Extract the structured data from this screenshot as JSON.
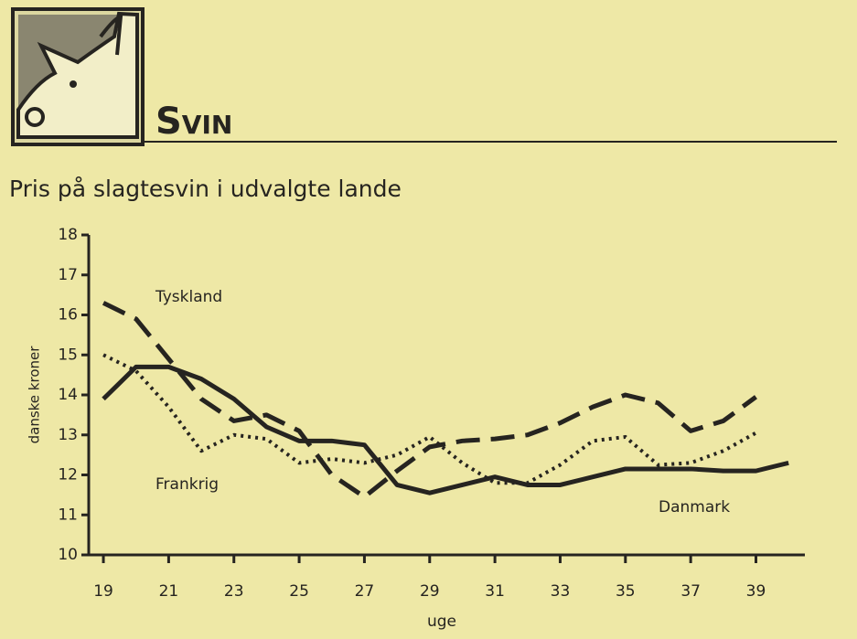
{
  "header": {
    "title": "Svin"
  },
  "chart_data": {
    "type": "line",
    "title": "Pris på slagtesvin i udvalgte lande",
    "x_label": "uge",
    "y_label": "danske kroner",
    "x": [
      19,
      20,
      21,
      22,
      23,
      24,
      25,
      26,
      27,
      28,
      29,
      30,
      31,
      32,
      33,
      34,
      35,
      36,
      37,
      38,
      39,
      40
    ],
    "series": [
      {
        "name": "Danmark",
        "color": "#262420",
        "style": "solid",
        "values": [
          13.9,
          14.7,
          14.7,
          14.4,
          13.9,
          13.2,
          12.85,
          12.85,
          12.75,
          11.75,
          11.55,
          11.75,
          11.95,
          11.75,
          11.75,
          11.95,
          12.15,
          12.15,
          12.15,
          12.1,
          12.1,
          12.3
        ]
      },
      {
        "name": "Tyskland",
        "color": "#262420",
        "style": "dashed",
        "values": [
          16.3,
          15.9,
          14.9,
          13.9,
          13.35,
          13.5,
          13.1,
          12.0,
          11.45,
          12.1,
          12.7,
          12.85,
          12.9,
          13.0,
          13.3,
          13.7,
          14.0,
          13.8,
          13.1,
          13.35,
          13.95,
          null
        ]
      },
      {
        "name": "Frankrig",
        "color": "#262420",
        "style": "dotted",
        "values": [
          15.0,
          14.6,
          13.7,
          12.6,
          13.0,
          12.9,
          12.3,
          12.4,
          12.3,
          12.5,
          12.95,
          12.3,
          11.8,
          11.8,
          12.25,
          12.85,
          12.95,
          12.25,
          12.3,
          12.6,
          13.05,
          null
        ]
      }
    ],
    "xlim": [
      18.55,
      40.5
    ],
    "xticks": [
      19,
      21,
      23,
      25,
      27,
      29,
      31,
      33,
      35,
      37,
      39
    ],
    "ylim": [
      10,
      18
    ],
    "yticks": [
      10,
      11,
      12,
      13,
      14,
      15,
      16,
      17,
      18
    ],
    "grid": false
  }
}
